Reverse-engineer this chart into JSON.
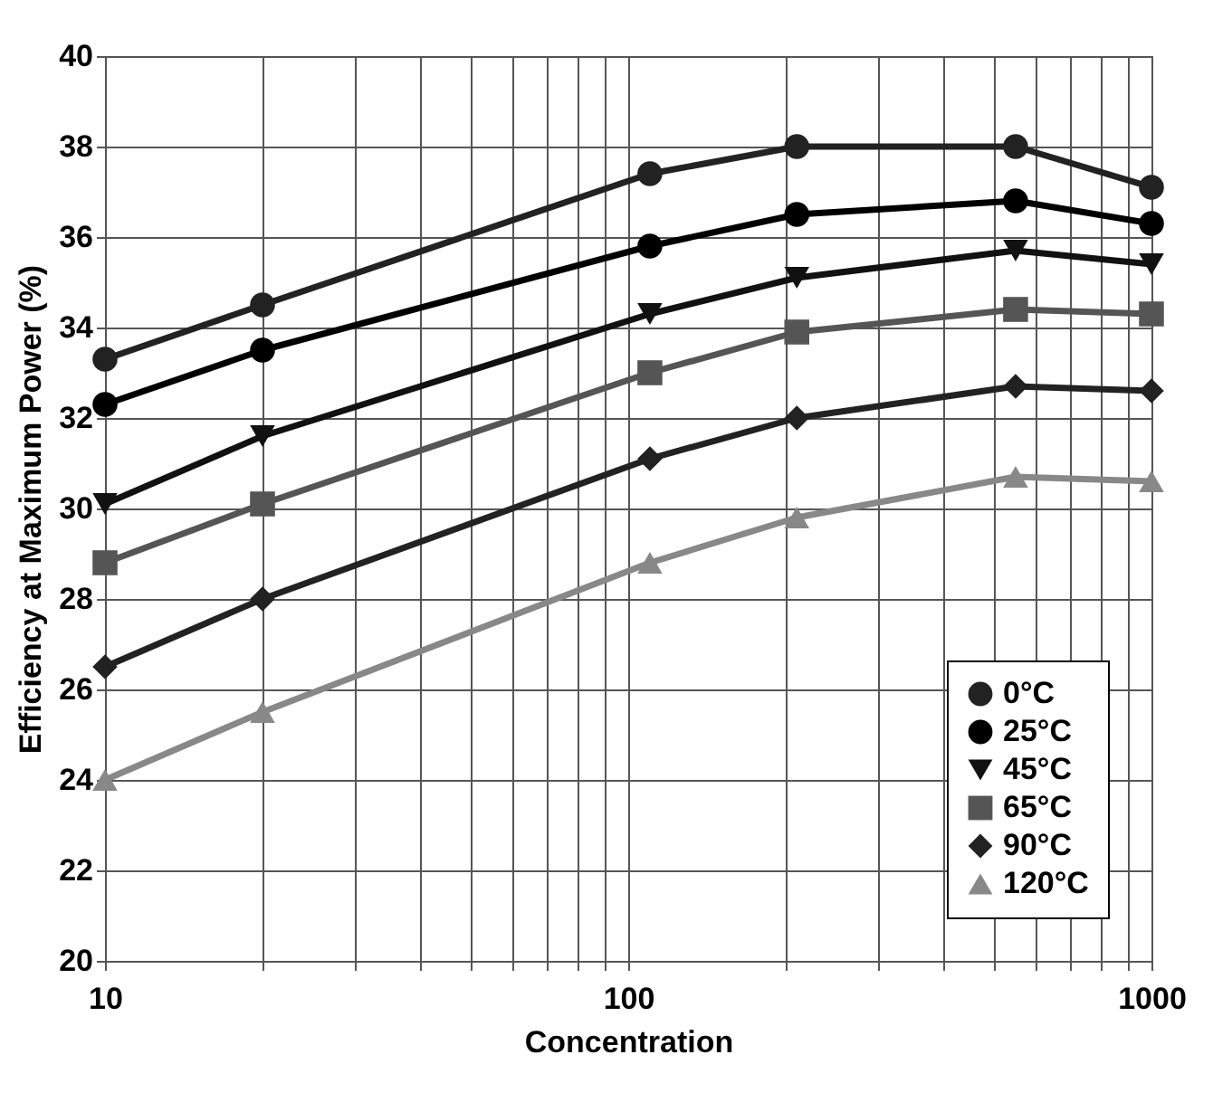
{
  "chart_data": {
    "type": "line",
    "xlabel": "Concentration",
    "ylabel": "Efficiency at Maximum Power (%)",
    "log": "x",
    "x": [
      10,
      20,
      110,
      210,
      550,
      1000
    ],
    "xlim": [
      10,
      1000
    ],
    "xticks": [
      10,
      {
        "value": 20,
        "label": null
      },
      {
        "value": 30,
        "label": null
      },
      {
        "value": 40,
        "label": null
      },
      {
        "value": 50,
        "label": null
      },
      {
        "value": 60,
        "label": null
      },
      {
        "value": 70,
        "label": null
      },
      {
        "value": 80,
        "label": null
      },
      {
        "value": 90,
        "label": null
      },
      100,
      {
        "value": 200,
        "label": null
      },
      {
        "value": 300,
        "label": null
      },
      {
        "value": 400,
        "label": null
      },
      {
        "value": 500,
        "label": null
      },
      {
        "value": 600,
        "label": null
      },
      {
        "value": 700,
        "label": null
      },
      {
        "value": 800,
        "label": null
      },
      {
        "value": 900,
        "label": null
      },
      1000
    ],
    "ylim": [
      20,
      40
    ],
    "yticks": [
      20,
      22,
      24,
      26,
      28,
      30,
      32,
      34,
      36,
      38,
      40
    ],
    "grid": true,
    "legend": "bottom right",
    "line_style": "solid",
    "series": [
      {
        "name": "0°C",
        "color": "#222222",
        "marker": "circle",
        "values": [
          33.3,
          34.5,
          37.4,
          38.0,
          38.0,
          37.1
        ]
      },
      {
        "name": "25°C",
        "color": "#000000",
        "marker": "circle",
        "values": [
          32.3,
          33.5,
          35.8,
          36.5,
          36.8,
          36.3
        ]
      },
      {
        "name": "45°C",
        "color": "#111111",
        "marker": "triangle-down",
        "values": [
          30.1,
          31.6,
          34.3,
          35.1,
          35.7,
          35.4
        ]
      },
      {
        "name": "65°C",
        "color": "#555555",
        "marker": "square",
        "values": [
          28.8,
          30.1,
          33.0,
          33.9,
          34.4,
          34.3
        ]
      },
      {
        "name": "90°C",
        "color": "#222222",
        "marker": "diamond",
        "values": [
          26.5,
          28.0,
          31.1,
          32.0,
          32.7,
          32.6
        ]
      },
      {
        "name": "120°C",
        "color": "#888888",
        "marker": "triangle-up",
        "values": [
          24.0,
          25.5,
          28.8,
          29.8,
          30.7,
          30.6
        ]
      }
    ]
  }
}
